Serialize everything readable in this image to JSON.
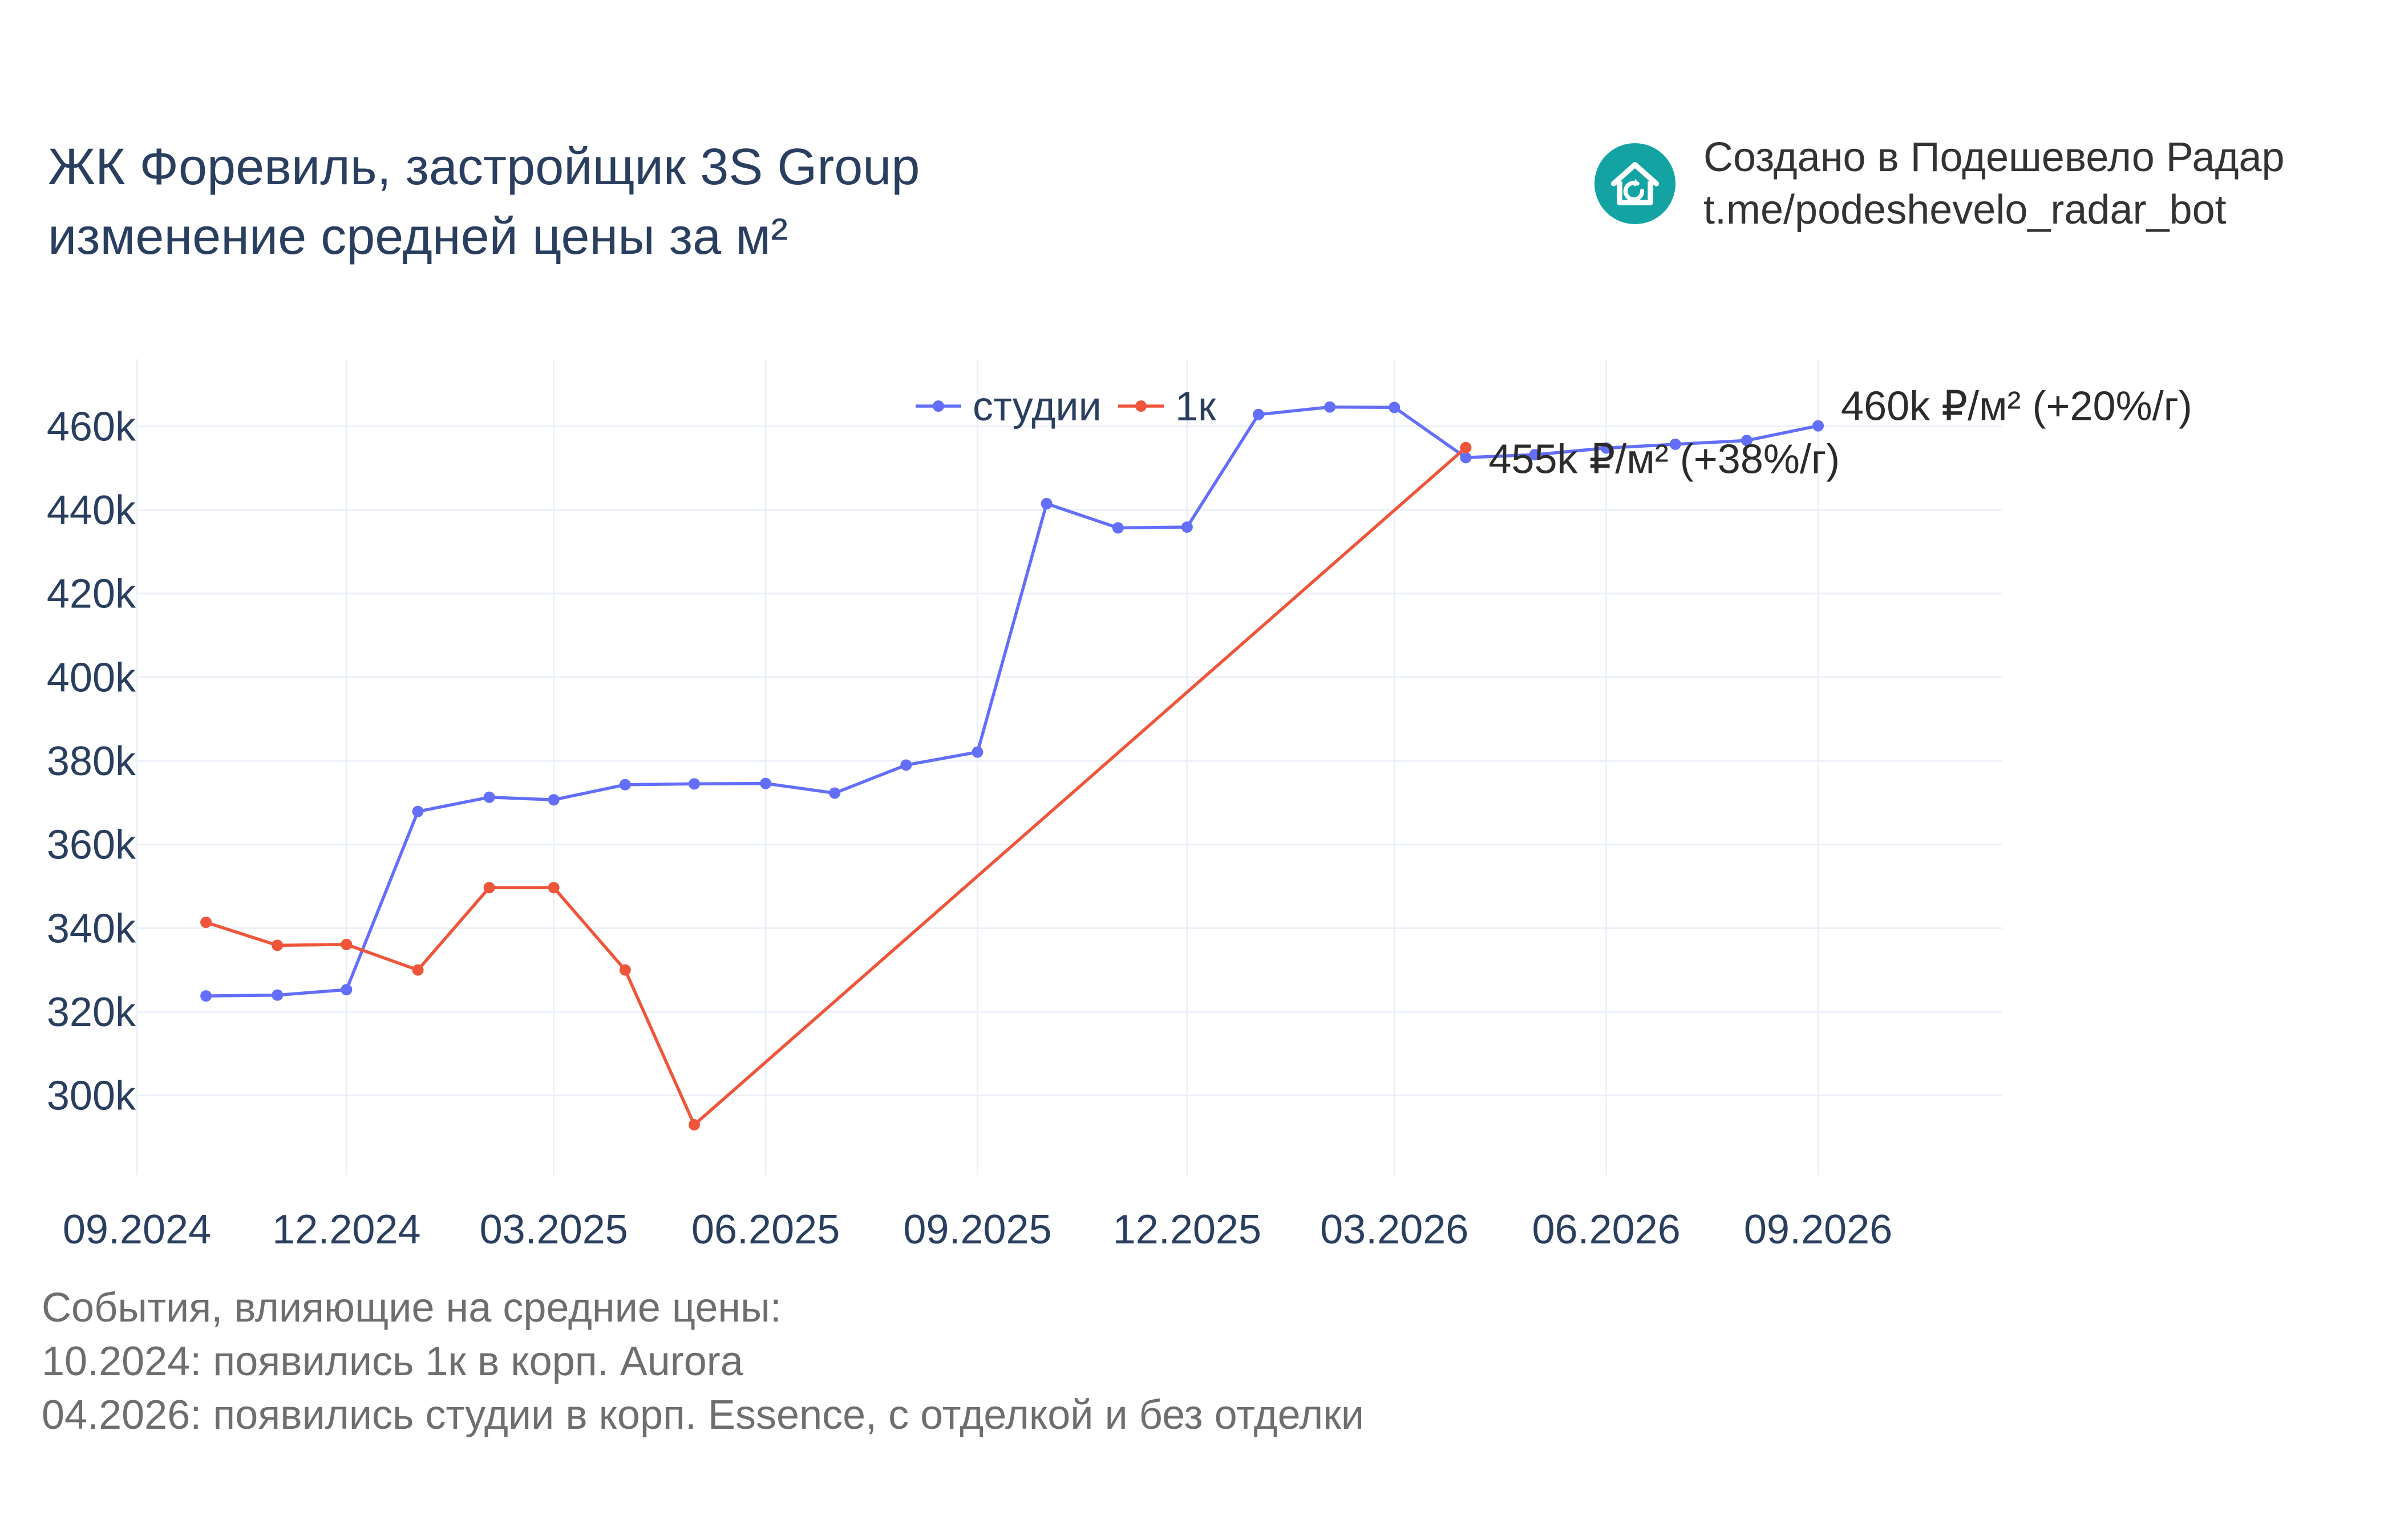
{
  "header": {
    "title_line1": "ЖК Форевиль, застройщик 3S Group",
    "title_line2": "изменение средней цены за м²"
  },
  "branding": {
    "icon": "house-refresh-icon",
    "accent_color": "#14a3a3",
    "line1": "Создано в Подешевело Радар",
    "line2": "t.me/podeshevelo_radar_bot"
  },
  "events": {
    "heading": "События, влияющие на средние цены:",
    "items": [
      "10.2024: появились 1к в корп. Aurora",
      "04.2026: появились студии в корп. Essence, с отделкой и без отделки"
    ]
  },
  "chart_data": {
    "type": "line",
    "x_axis": {
      "type": "date",
      "range": [
        "2024-09-01",
        "2026-11-20"
      ],
      "tick_values": [
        "2024-09-01",
        "2024-12-01",
        "2025-03-01",
        "2025-06-01",
        "2025-09-01",
        "2025-12-01",
        "2026-03-01",
        "2026-06-01",
        "2026-09-01"
      ],
      "tick_labels": [
        "09.2024",
        "12.2024",
        "03.2025",
        "06.2025",
        "09.2025",
        "12.2025",
        "03.2026",
        "06.2026",
        "09.2026"
      ]
    },
    "y_axis": {
      "range": [
        281000,
        476000
      ],
      "tick_values": [
        300000,
        320000,
        340000,
        360000,
        380000,
        400000,
        420000,
        440000,
        460000
      ],
      "tick_labels": [
        "300k",
        "320k",
        "340k",
        "360k",
        "380k",
        "400k",
        "420k",
        "440k",
        "460k"
      ]
    },
    "grid": true,
    "legend_position": "top-center",
    "series": [
      {
        "name": "студии",
        "color": "#636efa",
        "x": [
          "2024-10-01",
          "2024-11-01",
          "2024-12-01",
          "2025-01-01",
          "2025-02-01",
          "2025-03-01",
          "2025-04-01",
          "2025-05-01",
          "2025-06-01",
          "2025-07-01",
          "2025-08-01",
          "2025-09-01",
          "2025-10-01",
          "2025-11-01",
          "2025-12-01",
          "2026-01-01",
          "2026-02-01",
          "2026-03-01",
          "2026-04-01",
          "2026-05-01",
          "2026-06-01",
          "2026-07-01",
          "2026-08-01",
          "2026-09-01"
        ],
        "y": [
          323800,
          324000,
          325300,
          367900,
          371300,
          370700,
          374300,
          374500,
          374600,
          372300,
          379000,
          382100,
          441500,
          435700,
          435900,
          462800,
          464600,
          464500,
          452500,
          453200,
          454800,
          455700,
          456600,
          460100
        ]
      },
      {
        "name": "1к",
        "color": "#ef553b",
        "x": [
          "2024-10-01",
          "2024-11-01",
          "2024-12-01",
          "2025-01-01",
          "2025-02-01",
          "2025-03-01",
          "2025-04-01",
          "2025-05-01",
          "2026-04-01"
        ],
        "y": [
          341400,
          335900,
          336100,
          330000,
          349700,
          349700,
          330000,
          293000,
          454900
        ]
      }
    ],
    "annotations": [
      {
        "text": "460k ₽/м² (+20%/г)",
        "x": "2026-09-01",
        "y": 460100
      },
      {
        "text": "455k ₽/м² (+38%/г)",
        "x": "2026-04-01",
        "y": 454900
      }
    ]
  }
}
